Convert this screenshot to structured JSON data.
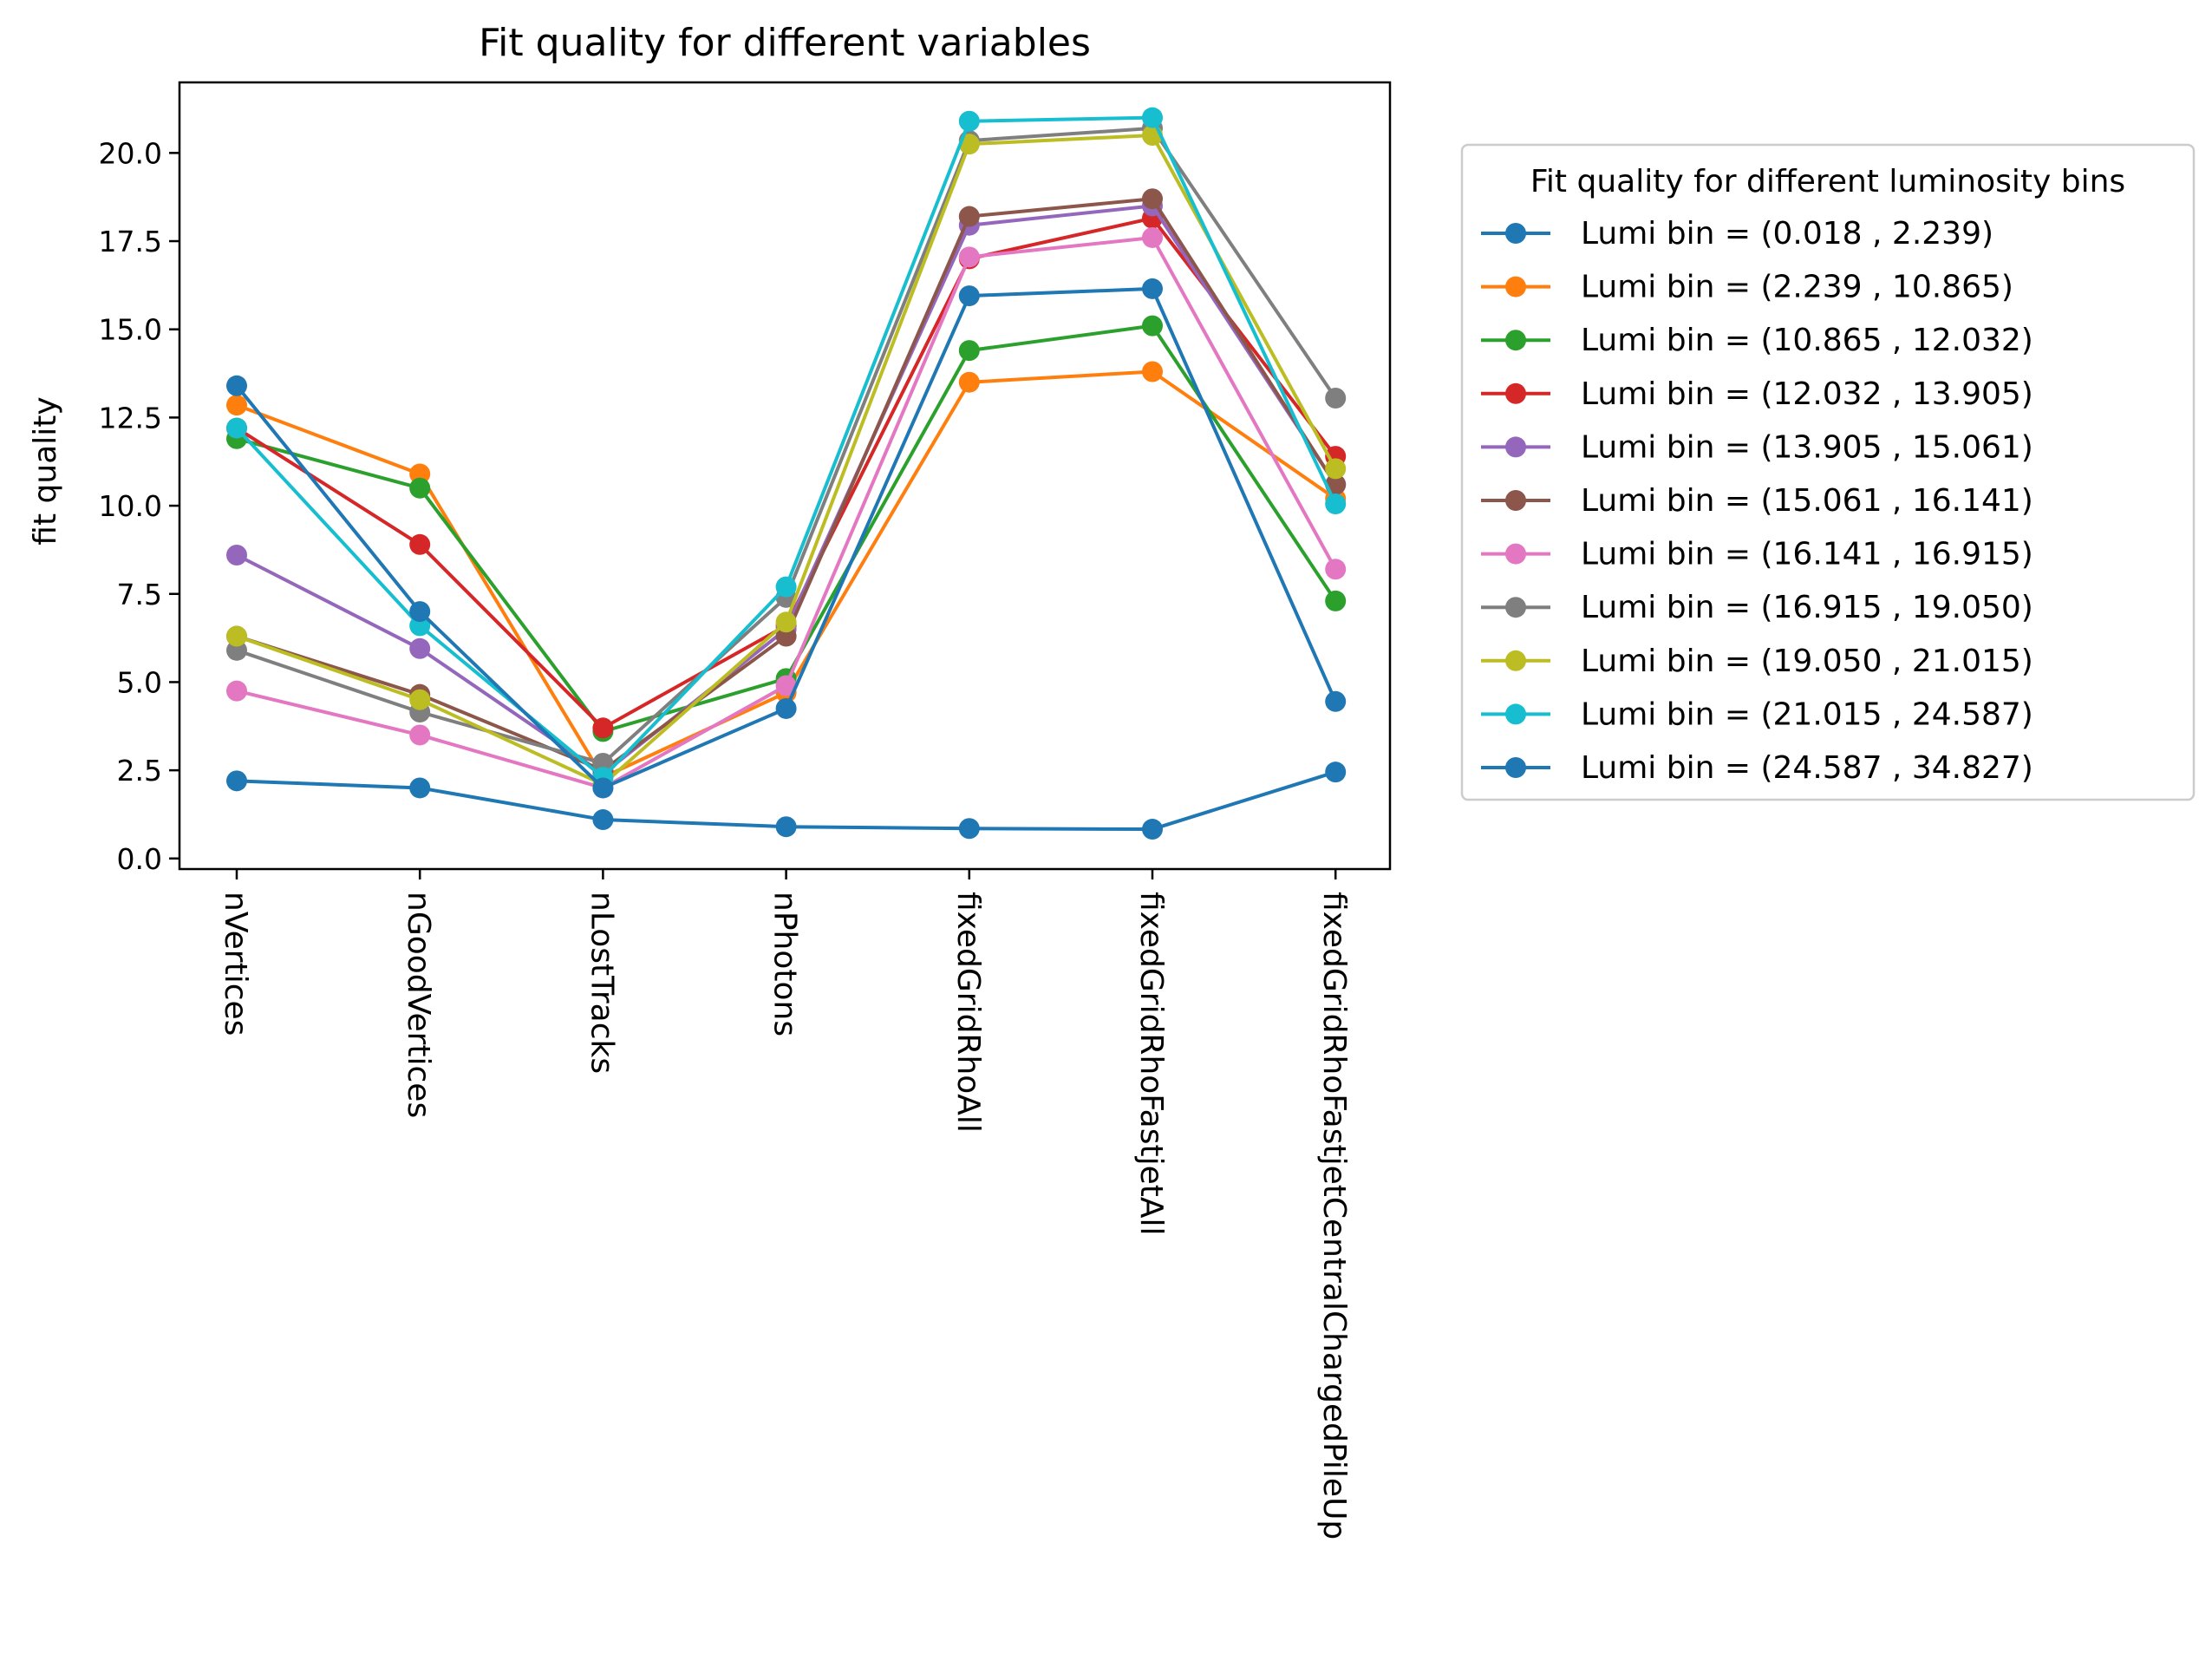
{
  "chart_data": {
    "type": "line",
    "title": "Fit quality for different variables",
    "xlabel": "",
    "ylabel": "fit quality",
    "categories": [
      "nVertices",
      "nGoodVertices",
      "nLostTracks",
      "nPhotons",
      "fixedGridRhoAll",
      "fixedGridRhoFastjetAll",
      "fixedGridRhoFastjetCentralChargedPileUp"
    ],
    "ylim": [
      -0.3,
      22.0
    ],
    "yticks": [
      "0.0",
      "2.5",
      "5.0",
      "7.5",
      "10.0",
      "12.5",
      "15.0",
      "17.5",
      "20.0"
    ],
    "grid": false,
    "legend": {
      "title": "Fit quality for different luminosity bins",
      "placement": "outside right, upper"
    },
    "series": [
      {
        "name": "Lumi bin = (0.018 , 2.239)",
        "color": "#1f77b4",
        "values": [
          2.2,
          2.0,
          1.1,
          0.9,
          0.85,
          0.83,
          2.45
        ]
      },
      {
        "name": "Lumi bin = (2.239 , 10.865)",
        "color": "#ff7f0e",
        "values": [
          12.85,
          10.9,
          2.3,
          4.7,
          13.5,
          13.8,
          10.2
        ]
      },
      {
        "name": "Lumi bin = (10.865 , 12.032)",
        "color": "#2ca02c",
        "values": [
          11.9,
          10.5,
          3.6,
          5.1,
          14.4,
          15.1,
          7.3
        ]
      },
      {
        "name": "Lumi bin = (12.032 , 13.905)",
        "color": "#d62728",
        "values": [
          12.2,
          8.9,
          3.7,
          6.6,
          17.0,
          18.15,
          11.4
        ]
      },
      {
        "name": "Lumi bin = (13.905 , 15.061)",
        "color": "#9467bd",
        "values": [
          8.6,
          5.95,
          2.4,
          6.5,
          17.95,
          18.5,
          10.6
        ]
      },
      {
        "name": "Lumi bin = (15.061 , 16.141)",
        "color": "#8c564b",
        "values": [
          6.3,
          4.65,
          2.5,
          6.3,
          18.2,
          18.7,
          10.6
        ]
      },
      {
        "name": "Lumi bin = (16.141 , 16.915)",
        "color": "#e377c2",
        "values": [
          4.75,
          3.5,
          2.0,
          4.9,
          17.05,
          17.6,
          8.2
        ]
      },
      {
        "name": "Lumi bin = (16.915 , 19.050)",
        "color": "#7f7f7f",
        "values": [
          5.9,
          4.15,
          2.7,
          7.4,
          20.35,
          20.7,
          13.05
        ]
      },
      {
        "name": "Lumi bin = (19.050 , 21.015)",
        "color": "#bcbd22",
        "values": [
          6.3,
          4.5,
          2.1,
          6.7,
          20.25,
          20.5,
          11.05
        ]
      },
      {
        "name": "Lumi bin = (21.015 , 24.587)",
        "color": "#17becf",
        "values": [
          12.2,
          6.6,
          2.3,
          7.7,
          20.9,
          21.0,
          10.05
        ]
      },
      {
        "name": "Lumi bin = (24.587 , 34.827)",
        "color": "#1f77b4",
        "values": [
          13.4,
          7.0,
          2.0,
          4.25,
          15.95,
          16.15,
          4.45
        ]
      }
    ]
  }
}
